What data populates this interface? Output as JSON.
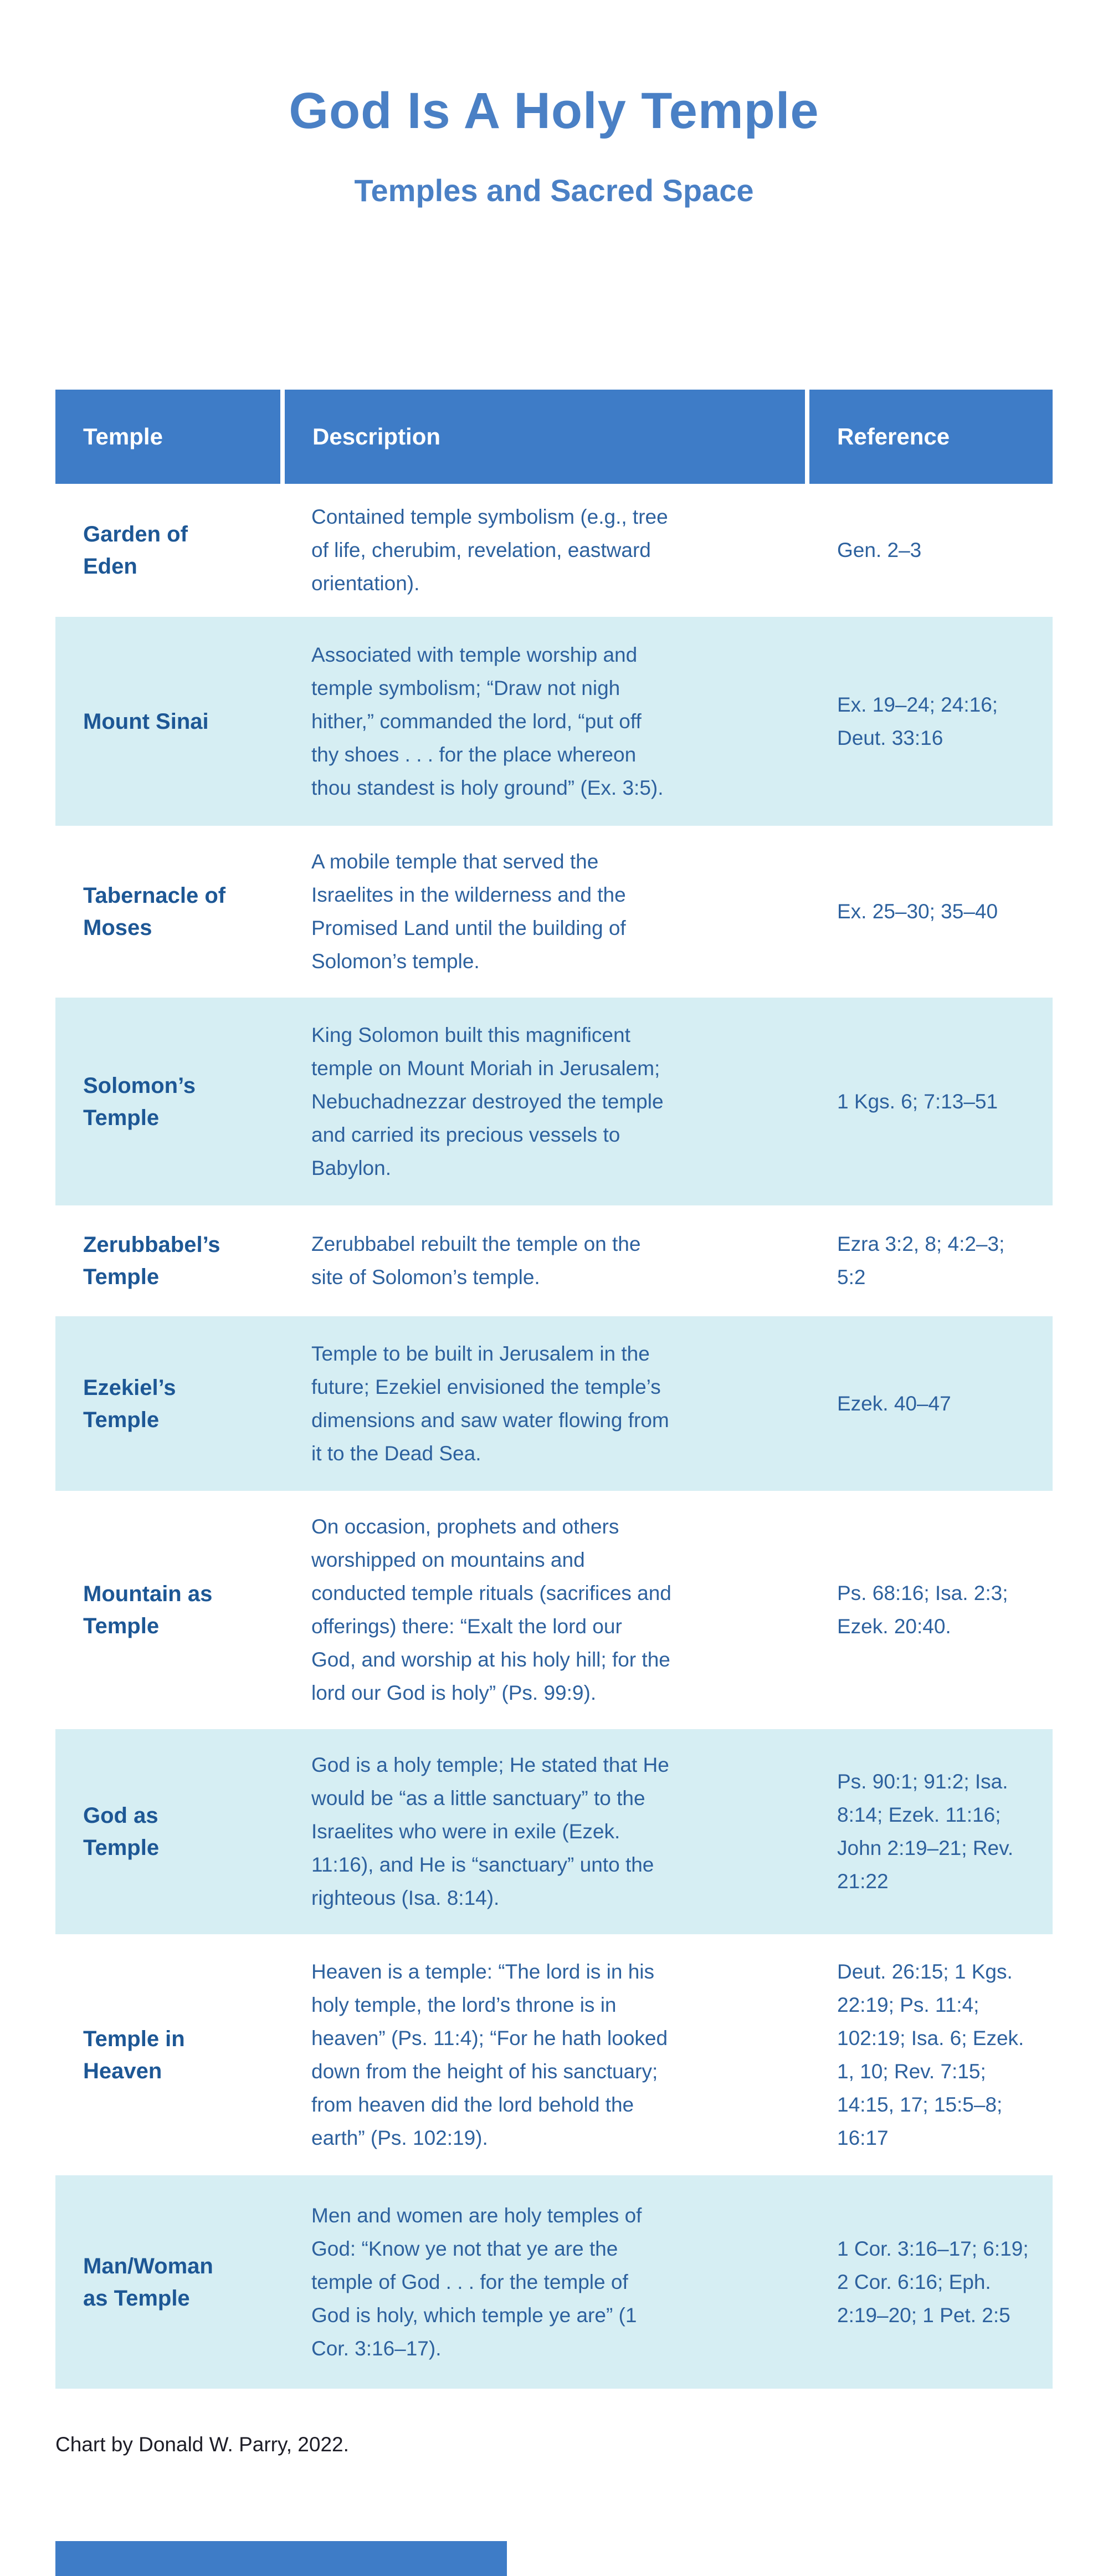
{
  "title": "God Is A Holy Temple",
  "subtitle": "Temples and Sacred Space",
  "footer": "Chart by Donald W. Parry, 2022.",
  "colors": {
    "header_blue": "#3e7cc7",
    "title_blue": "#4a80c5",
    "shaded_row_blue": "#d6eef3",
    "temple_name_blue": "#1d5795",
    "body_text_blue": "#2d619e",
    "footer_text": "#1c1c26"
  },
  "chart_data": {
    "type": "table",
    "title": "God Is A Holy Temple",
    "subtitle": "Temples and Sacred Space",
    "columns": [
      "Temple",
      "Description",
      "Reference"
    ],
    "rows": [
      {
        "temple": "Garden of\nEden",
        "description": "Contained temple symbolism (e.g., tree of life, cherubim, revelation, eastward orientation).",
        "reference": "Gen. 2–3",
        "shaded": false
      },
      {
        "temple": "Mount Sinai",
        "description": "Associated with temple worship and temple symbolism; “Draw not nigh hither,” commanded the lord, “put off thy shoes . . . for the place whereon thou standest is holy ground” (Ex. 3:5).",
        "reference": "Ex. 19–24; 24:16; Deut. 33:16",
        "shaded": true
      },
      {
        "temple": "Tabernacle of\nMoses",
        "description": "A mobile temple that served the Israelites in the wilderness and the Promised Land until the building of Solomon’s temple.",
        "reference": "Ex. 25–30; 35–40",
        "shaded": false
      },
      {
        "temple": "Solomon’s\nTemple",
        "description": "King Solomon built this magnificent temple on Mount Moriah in Jerusalem; Nebuchadnezzar destroyed the temple and carried its precious vessels to Babylon.",
        "reference": "1 Kgs. 6; 7:13–51",
        "shaded": true
      },
      {
        "temple": "Zerubbabel’s\nTemple",
        "description": "Zerubbabel rebuilt the temple on the site of Solomon’s temple.",
        "reference": "Ezra 3:2, 8; 4:2–3; 5:2",
        "shaded": false
      },
      {
        "temple": "Ezekiel’s\nTemple",
        "description": "Temple to be built in Jerusalem in the future; Ezekiel envisioned the temple’s dimensions and saw water flowing from it to the Dead Sea.",
        "reference": "Ezek. 40–47",
        "shaded": true
      },
      {
        "temple": "Mountain as\nTemple",
        "description": "On occasion, prophets and others worshipped on mountains and conducted temple rituals (sacrifices and offerings) there: “Exalt the lord our God, and worship at his holy hill; for the lord our God is holy” (Ps. 99:9).",
        "reference": "Ps. 68:16; Isa. 2:3; Ezek. 20:40.",
        "shaded": false
      },
      {
        "temple": "God as\nTemple",
        "description": "God is a holy temple; He stated that He would be “as a little sanctuary” to the Israelites who were in exile (Ezek. 11:16), and He is “sanctuary” unto the righteous (Isa. 8:14).",
        "reference": "Ps. 90:1; 91:2; Isa. 8:14; Ezek. 11:16; John 2:19–21; Rev. 21:22",
        "shaded": true
      },
      {
        "temple": "Temple in\nHeaven",
        "description": "Heaven is a temple: “The lord is in his holy temple, the lord’s throne is in heaven” (Ps. 11:4); “For he hath looked down from the height of his sanctuary; from heaven did the lord behold the earth” (Ps. 102:19).",
        "reference": "Deut. 26:15; 1 Kgs. 22:19; Ps. 11:4; 102:19; Isa. 6; Ezek. 1, 10; Rev. 7:15; 14:15, 17; 15:5–8; 16:17",
        "shaded": false
      },
      {
        "temple": "Man/Woman\nas Temple",
        "description": "Men and women are holy temples of God: “Know ye not that ye are the temple of God . . . for the temple of God is holy, which temple ye are” (1 Cor. 3:16–17).",
        "reference": "1 Cor. 3:16–17; 6:19; 2 Cor. 6:16; Eph. 2:19–20; 1 Pet. 2:5",
        "shaded": true
      }
    ]
  }
}
